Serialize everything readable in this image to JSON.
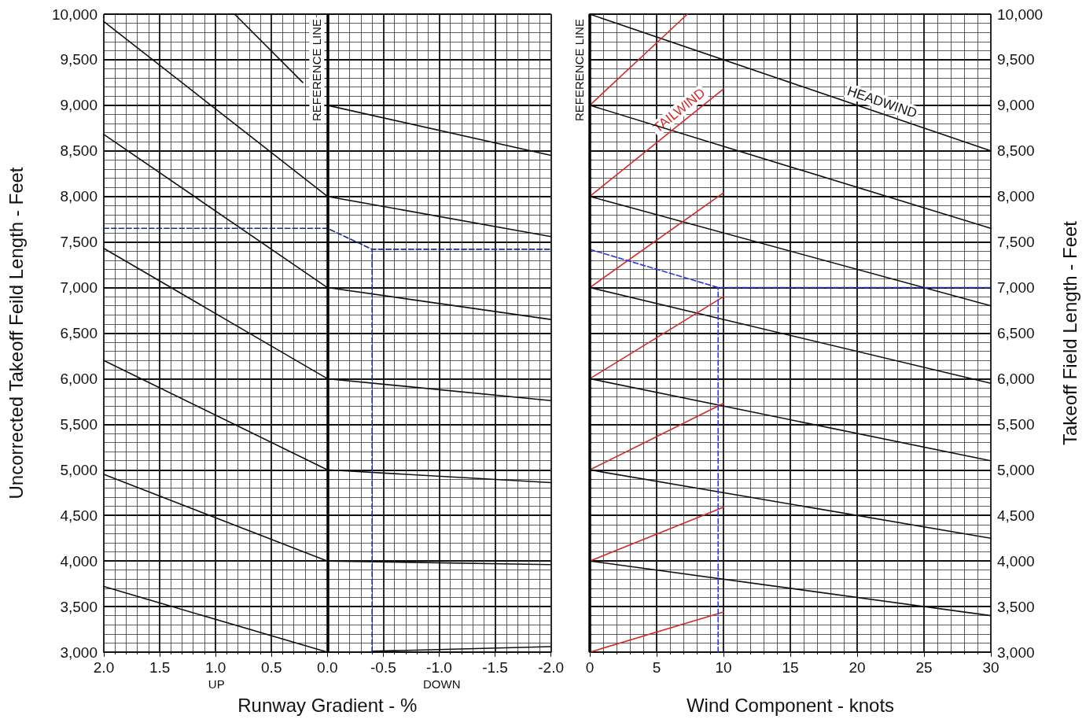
{
  "chart_data": [
    {
      "type": "line",
      "xlabel": "Runway Gradient - %",
      "ylabel": "Uncorrected Takeoff Feild Length - Feet",
      "xlim": [
        2,
        -2
      ],
      "xticks": [
        {
          "value": 2,
          "label": "2.0"
        },
        {
          "value": 1.5,
          "label": "1.5"
        },
        {
          "value": 1,
          "label": "1.0"
        },
        {
          "value": 0.5,
          "label": "0.5"
        },
        {
          "value": 0,
          "label": "0.0"
        },
        {
          "value": -0.5,
          "label": "-0.5"
        },
        {
          "value": -1,
          "label": "-1.0"
        },
        {
          "value": -1.5,
          "label": "-1.5"
        },
        {
          "value": -2,
          "label": "-2.0"
        }
      ],
      "ylim": [
        3000,
        10000
      ],
      "yticks": [
        {
          "value": 3000,
          "label": "3,000"
        },
        {
          "value": 3500,
          "label": "3,500"
        },
        {
          "value": 4000,
          "label": "4,000"
        },
        {
          "value": 4500,
          "label": "4,500"
        },
        {
          "value": 5000,
          "label": "5,000"
        },
        {
          "value": 5500,
          "label": "5,500"
        },
        {
          "value": 6000,
          "label": "6,000"
        },
        {
          "value": 6500,
          "label": "6,500"
        },
        {
          "value": 7000,
          "label": "7,000"
        },
        {
          "value": 7500,
          "label": "7,500"
        },
        {
          "value": 8000,
          "label": "8,000"
        },
        {
          "value": 8500,
          "label": "8,500"
        },
        {
          "value": 9000,
          "label": "9,000"
        },
        {
          "value": 9500,
          "label": "9,500"
        },
        {
          "value": 10000,
          "label": "10,000"
        }
      ],
      "grid": true,
      "ref_lines": [
        {
          "axis": "x",
          "value": 0,
          "label": "REFERENCE LINE",
          "color": "#000000"
        }
      ],
      "annotations": [
        "UP",
        "DOWN"
      ],
      "series": [
        {
          "color": "#111111",
          "x": [
            2,
            0,
            -2
          ],
          "values": [
            3720,
            3000,
            3000
          ]
        },
        {
          "color": "#111111",
          "x": [
            2,
            0,
            -2
          ],
          "values": [
            4950,
            4000,
            3960
          ]
        },
        {
          "color": "#111111",
          "x": [
            2,
            0,
            -2
          ],
          "values": [
            6200,
            5000,
            4860
          ]
        },
        {
          "color": "#111111",
          "x": [
            2,
            0,
            -2
          ],
          "values": [
            7430,
            6000,
            5760
          ]
        },
        {
          "color": "#111111",
          "x": [
            2,
            0,
            -2
          ],
          "values": [
            8680,
            7000,
            6650
          ]
        },
        {
          "color": "#111111",
          "x": [
            2,
            0,
            -2
          ],
          "values": [
            9920,
            8000,
            7560
          ]
        },
        {
          "color": "#111111",
          "x": [
            0.83,
            0.22
          ],
          "values": [
            10000,
            9250
          ]
        },
        {
          "color": "#111111",
          "x": [
            0,
            -2
          ],
          "values": [
            9000,
            8450
          ]
        },
        {
          "color": "#111111",
          "x": [
            -0.4,
            -2
          ],
          "values": [
            3010,
            3060
          ]
        },
        {
          "color": "#1c2a8c",
          "line_style": "dashed",
          "x": [
            2,
            0,
            -0.4,
            -2
          ],
          "values": [
            7650,
            7650,
            7420,
            7420
          ]
        },
        {
          "color": "#1c2a8c",
          "line_style": "dashed",
          "x": [
            -0.4,
            -0.4
          ],
          "values": [
            3000,
            7420
          ]
        }
      ]
    },
    {
      "type": "line",
      "xlabel": "Wind Component - knots",
      "ylabel": "Takeoff Field Length - Feet",
      "xlim": [
        0,
        30
      ],
      "xticks": [
        0,
        5,
        10,
        15,
        20,
        25,
        30
      ],
      "ylim": [
        3000,
        10000
      ],
      "yticks": [
        {
          "value": 3000,
          "label": "3,000"
        },
        {
          "value": 3500,
          "label": "3,500"
        },
        {
          "value": 4000,
          "label": "4,000"
        },
        {
          "value": 4500,
          "label": "4,500"
        },
        {
          "value": 5000,
          "label": "5,000"
        },
        {
          "value": 5500,
          "label": "5,500"
        },
        {
          "value": 6000,
          "label": "6,000"
        },
        {
          "value": 6500,
          "label": "6,500"
        },
        {
          "value": 7000,
          "label": "7,000"
        },
        {
          "value": 7500,
          "label": "7,500"
        },
        {
          "value": 8000,
          "label": "8,000"
        },
        {
          "value": 8500,
          "label": "8,500"
        },
        {
          "value": 9000,
          "label": "9,000"
        },
        {
          "value": 9500,
          "label": "9,500"
        },
        {
          "value": 10000,
          "label": "10,000"
        }
      ],
      "grid": true,
      "ref_lines": [
        {
          "axis": "x",
          "value": 0,
          "label": "REFERENCE LINE",
          "color": "#000000"
        }
      ],
      "series": [
        {
          "name": "HEADWIND",
          "color": "#111111",
          "x": [
            0,
            30
          ],
          "values": [
            10000,
            8500
          ]
        },
        {
          "color": "#111111",
          "x": [
            0,
            30
          ],
          "values": [
            9000,
            7650
          ]
        },
        {
          "color": "#111111",
          "x": [
            0,
            30
          ],
          "values": [
            8000,
            6800
          ]
        },
        {
          "color": "#111111",
          "x": [
            0,
            30
          ],
          "values": [
            7000,
            5950
          ]
        },
        {
          "color": "#111111",
          "x": [
            0,
            30
          ],
          "values": [
            6000,
            5100
          ]
        },
        {
          "color": "#111111",
          "x": [
            0,
            30
          ],
          "values": [
            5000,
            4250
          ]
        },
        {
          "color": "#111111",
          "x": [
            0,
            30
          ],
          "values": [
            4000,
            3400
          ]
        },
        {
          "color": "#d62828",
          "x": [
            0,
            7.3
          ],
          "values": [
            9000,
            10000
          ]
        },
        {
          "name": "TAILWIND",
          "color": "#d62828",
          "x": [
            0,
            10
          ],
          "values": [
            8000,
            9180
          ]
        },
        {
          "color": "#d62828",
          "x": [
            0,
            10
          ],
          "values": [
            7000,
            8040
          ]
        },
        {
          "color": "#d62828",
          "x": [
            0,
            10
          ],
          "values": [
            6000,
            6900
          ]
        },
        {
          "color": "#d62828",
          "x": [
            0,
            10
          ],
          "values": [
            5000,
            5730
          ]
        },
        {
          "color": "#d62828",
          "x": [
            0,
            10
          ],
          "values": [
            4000,
            4590
          ]
        },
        {
          "color": "#d62828",
          "x": [
            0,
            10
          ],
          "values": [
            3000,
            3440
          ]
        },
        {
          "color": "#2a3ae0",
          "line_style": "dashed",
          "x": [
            0,
            9.6,
            30
          ],
          "values": [
            7420,
            7000,
            7000
          ]
        },
        {
          "color": "#2a3ae0",
          "line_style": "dashed",
          "x": [
            9.6,
            9.6
          ],
          "values": [
            3000,
            7000
          ]
        }
      ]
    }
  ]
}
